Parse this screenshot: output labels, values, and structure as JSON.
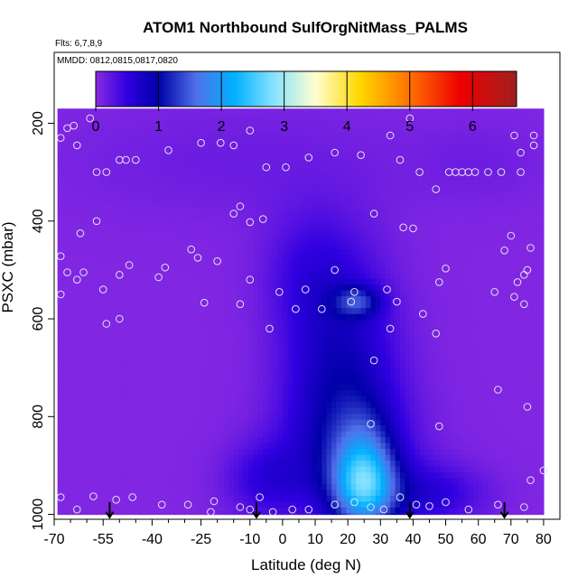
{
  "chart_data": {
    "type": "heatmap",
    "title": "ATOM1 Northbound SulfOrgNitMass_PALMS",
    "subtitle_flights": "Flts: 6,7,8,9",
    "subtitle_dates": "MMDD: 0812,0815,0817,0820",
    "xlabel": "Latitude (deg N)",
    "ylabel": "PSXC (mbar)",
    "xlim": [
      -70,
      85
    ],
    "ylim": [
      1010,
      55
    ],
    "x_ticks": [
      -70,
      -55,
      -40,
      -25,
      -10,
      0,
      10,
      20,
      30,
      40,
      50,
      60,
      70,
      80
    ],
    "x_tick_labels": [
      "-70",
      "-55",
      "-40",
      "-25",
      "-10",
      "0",
      "10",
      "20",
      "30",
      "40",
      "50",
      "60",
      "70",
      "80"
    ],
    "x_minor_ticks": [
      -65,
      -60,
      -50,
      -45,
      -35,
      -30,
      -20,
      -15,
      -5,
      5,
      15,
      25,
      35,
      45,
      55,
      65,
      75
    ],
    "y_ticks": [
      200,
      400,
      600,
      800,
      1000
    ],
    "y_tick_labels": [
      "200",
      "400",
      "600",
      "800",
      "1000"
    ],
    "colorbar": {
      "min": 0,
      "max": 6.7,
      "ticks": [
        0,
        1,
        2,
        3,
        4,
        5,
        6
      ],
      "tick_labels": [
        "0",
        "1",
        "2",
        "3",
        "4",
        "5",
        "6"
      ],
      "stops": [
        {
          "v": 0.0,
          "color": "#8a2be2"
        },
        {
          "v": 0.5,
          "color": "#3000e0"
        },
        {
          "v": 1.0,
          "color": "#0000a8"
        },
        {
          "v": 1.6,
          "color": "#5070e8"
        },
        {
          "v": 2.2,
          "color": "#00b0ff"
        },
        {
          "v": 2.8,
          "color": "#80e0ff"
        },
        {
          "v": 3.5,
          "color": "#ffffd0"
        },
        {
          "v": 4.2,
          "color": "#ffd800"
        },
        {
          "v": 5.0,
          "color": "#ff7000"
        },
        {
          "v": 5.8,
          "color": "#ee0000"
        },
        {
          "v": 6.7,
          "color": "#a02020"
        }
      ]
    },
    "field_extent": {
      "lat": [
        -69,
        80
      ],
      "p": [
        170,
        1000
      ]
    },
    "field_features": [
      {
        "lat": -5,
        "p": 930,
        "lat_sigma": 9,
        "p_sigma": 55,
        "value": 0.45
      },
      {
        "lat": 18,
        "p": 720,
        "lat_sigma": 12,
        "p_sigma": 170,
        "value": 0.8
      },
      {
        "lat": 25,
        "p": 950,
        "lat_sigma": 7,
        "p_sigma": 60,
        "value": 1.7
      },
      {
        "lat": 25,
        "p": 880,
        "lat_sigma": 6,
        "p_sigma": 70,
        "value": 0.6
      },
      {
        "lat": 21,
        "p": 870,
        "lat_sigma": 14,
        "p_sigma": 90,
        "value": 0.4
      },
      {
        "lat": 23,
        "p": 565,
        "lat_sigma": 5,
        "p_sigma": 22,
        "value": 0.9
      },
      {
        "lat": 45,
        "p": 960,
        "lat_sigma": 12,
        "p_sigma": 45,
        "value": 0.5
      },
      {
        "lat": 8,
        "p": 500,
        "lat_sigma": 10,
        "p_sigma": 90,
        "value": 0.3
      },
      {
        "lat": -15,
        "p": 280,
        "lat_sigma": 35,
        "p_sigma": 80,
        "value": 0.12
      },
      {
        "lat": 60,
        "p": 280,
        "lat_sigma": 15,
        "p_sigma": 60,
        "value": 0.1
      }
    ],
    "observations": [
      [
        -68,
        230
      ],
      [
        -66,
        210
      ],
      [
        -64,
        205
      ],
      [
        -59,
        190
      ],
      [
        -63,
        245
      ],
      [
        -68,
        472
      ],
      [
        -57,
        300
      ],
      [
        -54,
        300
      ],
      [
        -50,
        275
      ],
      [
        -48,
        275
      ],
      [
        -45,
        275
      ],
      [
        -35,
        255
      ],
      [
        -25,
        240
      ],
      [
        -19,
        240
      ],
      [
        -15,
        245
      ],
      [
        -10,
        215
      ],
      [
        -5,
        290
      ],
      [
        1,
        290
      ],
      [
        8,
        270
      ],
      [
        16,
        260
      ],
      [
        24,
        265
      ],
      [
        33,
        225
      ],
      [
        36,
        275
      ],
      [
        39,
        190
      ],
      [
        42,
        300
      ],
      [
        47,
        335
      ],
      [
        51,
        300
      ],
      [
        53,
        300
      ],
      [
        55,
        300
      ],
      [
        57,
        300
      ],
      [
        59,
        300
      ],
      [
        63,
        300
      ],
      [
        67,
        300
      ],
      [
        71,
        225
      ],
      [
        73,
        260
      ],
      [
        77,
        225
      ],
      [
        77,
        245
      ],
      [
        73,
        300
      ],
      [
        -57,
        400
      ],
      [
        -62,
        425
      ],
      [
        -66,
        505
      ],
      [
        -63,
        520
      ],
      [
        -61,
        505
      ],
      [
        -55,
        540
      ],
      [
        -54,
        610
      ],
      [
        -50,
        600
      ],
      [
        -50,
        510
      ],
      [
        -47,
        490
      ],
      [
        -38,
        515
      ],
      [
        -36,
        495
      ],
      [
        -28,
        458
      ],
      [
        -26,
        475
      ],
      [
        -20,
        482
      ],
      [
        -15,
        385
      ],
      [
        -13,
        370
      ],
      [
        -10,
        402
      ],
      [
        -6,
        396
      ],
      [
        -13,
        570
      ],
      [
        -10,
        520
      ],
      [
        -4,
        620
      ],
      [
        -1,
        545
      ],
      [
        4,
        580
      ],
      [
        7,
        540
      ],
      [
        12,
        580
      ],
      [
        16,
        500
      ],
      [
        21,
        565
      ],
      [
        22,
        545
      ],
      [
        28,
        385
      ],
      [
        32,
        540
      ],
      [
        33,
        620
      ],
      [
        35,
        565
      ],
      [
        37,
        413
      ],
      [
        40,
        415
      ],
      [
        43,
        590
      ],
      [
        47,
        630
      ],
      [
        48,
        525
      ],
      [
        50,
        497
      ],
      [
        70,
        430
      ],
      [
        68,
        460
      ],
      [
        76,
        455
      ],
      [
        75,
        500
      ],
      [
        72,
        525
      ],
      [
        74,
        510
      ],
      [
        74,
        570
      ],
      [
        71,
        555
      ],
      [
        65,
        545
      ],
      [
        66,
        745
      ],
      [
        75,
        780
      ],
      [
        27,
        815
      ],
      [
        28,
        685
      ],
      [
        48,
        820
      ],
      [
        -68,
        550
      ],
      [
        -24,
        567
      ],
      [
        -68,
        965
      ],
      [
        -63,
        990
      ],
      [
        -58,
        963
      ],
      [
        -51,
        970
      ],
      [
        -46,
        965
      ],
      [
        -37,
        980
      ],
      [
        -29,
        980
      ],
      [
        -21,
        973
      ],
      [
        -22,
        995
      ],
      [
        -13,
        985
      ],
      [
        -10,
        990
      ],
      [
        -7,
        965
      ],
      [
        -3,
        995
      ],
      [
        3,
        990
      ],
      [
        8,
        990
      ],
      [
        16,
        980
      ],
      [
        22,
        975
      ],
      [
        27,
        985
      ],
      [
        31,
        990
      ],
      [
        36,
        965
      ],
      [
        41,
        980
      ],
      [
        45,
        983
      ],
      [
        50,
        975
      ],
      [
        57,
        990
      ],
      [
        66,
        980
      ],
      [
        74,
        985
      ],
      [
        76,
        930
      ],
      [
        80,
        910
      ]
    ],
    "flight_markers_lat": [
      -53,
      -8,
      39,
      68
    ],
    "marker_symbol": "open-circle",
    "grid": false,
    "legend": "colorbar-top"
  }
}
